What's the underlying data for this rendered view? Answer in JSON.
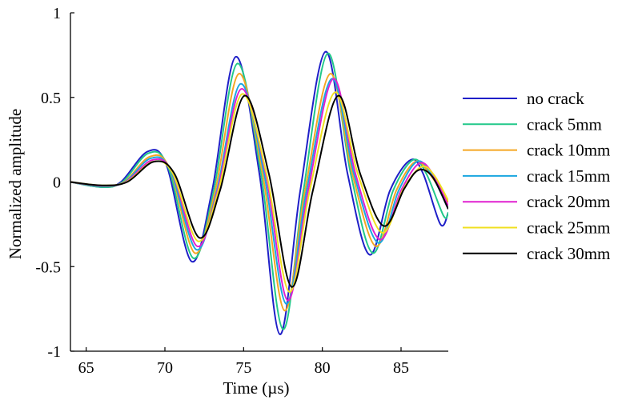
{
  "chart_data": {
    "type": "line",
    "title": "",
    "xlabel": "Time (µs)",
    "ylabel": "Normalized amplitude",
    "xlim": [
      64,
      88
    ],
    "ylim": [
      -1,
      1
    ],
    "x_ticks": [
      {
        "value": 65,
        "label": "65"
      },
      {
        "value": 70,
        "label": "70"
      },
      {
        "value": 75,
        "label": "75"
      },
      {
        "value": 80,
        "label": "80"
      },
      {
        "value": 85,
        "label": "85"
      }
    ],
    "y_ticks": [
      {
        "value": -1,
        "label": "-1"
      },
      {
        "value": -0.5,
        "label": "-0.5"
      },
      {
        "value": 0,
        "label": "0"
      },
      {
        "value": 0.5,
        "label": "0.5"
      },
      {
        "value": 1,
        "label": "1"
      }
    ],
    "grid": false,
    "legend_position": "right",
    "series": [
      {
        "name": "no crack",
        "color": "#1f1fc8",
        "points": [
          [
            64,
            0
          ],
          [
            66,
            -0.03
          ],
          [
            67.2,
            0
          ],
          [
            68.9,
            0.18
          ],
          [
            70.1,
            0.1
          ],
          [
            71.7,
            -0.47
          ],
          [
            73.0,
            -0.05
          ],
          [
            74.5,
            0.74
          ],
          [
            76.0,
            0.05
          ],
          [
            77.3,
            -0.9
          ],
          [
            78.6,
            -0.05
          ],
          [
            80.2,
            0.77
          ],
          [
            81.6,
            0.05
          ],
          [
            83.0,
            -0.43
          ],
          [
            84.3,
            -0.05
          ],
          [
            85.6,
            0.13
          ],
          [
            86.4,
            0.05
          ],
          [
            87.5,
            -0.25
          ],
          [
            88,
            -0.18
          ]
        ]
      },
      {
        "name": "crack 5mm",
        "color": "#22c88a",
        "points": [
          [
            64,
            0
          ],
          [
            66,
            -0.03
          ],
          [
            67.3,
            0
          ],
          [
            68.95,
            0.17
          ],
          [
            70.2,
            0.09
          ],
          [
            71.8,
            -0.45
          ],
          [
            73.1,
            -0.05
          ],
          [
            74.6,
            0.7
          ],
          [
            76.1,
            0.05
          ],
          [
            77.5,
            -0.87
          ],
          [
            78.8,
            -0.05
          ],
          [
            80.35,
            0.76
          ],
          [
            81.8,
            0.05
          ],
          [
            83.2,
            -0.42
          ],
          [
            84.5,
            -0.05
          ],
          [
            85.75,
            0.13
          ],
          [
            86.6,
            0.05
          ],
          [
            87.7,
            -0.2
          ],
          [
            88,
            -0.18
          ]
        ]
      },
      {
        "name": "crack 10mm",
        "color": "#f5a623",
        "points": [
          [
            64,
            0
          ],
          [
            66,
            -0.025
          ],
          [
            67.4,
            0
          ],
          [
            69.05,
            0.15
          ],
          [
            70.3,
            0.08
          ],
          [
            71.9,
            -0.42
          ],
          [
            73.2,
            -0.05
          ],
          [
            74.7,
            0.64
          ],
          [
            76.2,
            0.05
          ],
          [
            77.6,
            -0.76
          ],
          [
            78.9,
            -0.05
          ],
          [
            80.5,
            0.64
          ],
          [
            81.9,
            0.05
          ],
          [
            83.4,
            -0.38
          ],
          [
            84.7,
            -0.05
          ],
          [
            85.9,
            0.12
          ],
          [
            86.8,
            0.05
          ],
          [
            88,
            -0.12
          ]
        ]
      },
      {
        "name": "crack 15mm",
        "color": "#1aa6e0",
        "points": [
          [
            64,
            0
          ],
          [
            66,
            -0.025
          ],
          [
            67.45,
            0
          ],
          [
            69.1,
            0.14
          ],
          [
            70.35,
            0.07
          ],
          [
            72.0,
            -0.4
          ],
          [
            73.3,
            -0.05
          ],
          [
            74.8,
            0.58
          ],
          [
            76.3,
            0.05
          ],
          [
            77.7,
            -0.72
          ],
          [
            79.0,
            -0.05
          ],
          [
            80.6,
            0.61
          ],
          [
            82.0,
            0.05
          ],
          [
            83.55,
            -0.36
          ],
          [
            84.85,
            -0.05
          ],
          [
            86.0,
            0.12
          ],
          [
            86.9,
            0.05
          ],
          [
            88,
            -0.16
          ]
        ]
      },
      {
        "name": "crack 20mm",
        "color": "#e020d0",
        "points": [
          [
            64,
            0
          ],
          [
            66,
            -0.022
          ],
          [
            67.5,
            0
          ],
          [
            69.2,
            0.13
          ],
          [
            70.45,
            0.06
          ],
          [
            72.05,
            -0.38
          ],
          [
            73.35,
            -0.05
          ],
          [
            74.85,
            0.55
          ],
          [
            76.4,
            0.05
          ],
          [
            77.8,
            -0.7
          ],
          [
            79.1,
            -0.05
          ],
          [
            80.7,
            0.61
          ],
          [
            82.1,
            0.05
          ],
          [
            83.65,
            -0.34
          ],
          [
            85.0,
            -0.05
          ],
          [
            86.15,
            0.11
          ],
          [
            87.0,
            0.05
          ],
          [
            88,
            -0.14
          ]
        ]
      },
      {
        "name": "crack 25mm",
        "color": "#f0e020",
        "points": [
          [
            64,
            0
          ],
          [
            66,
            -0.02
          ],
          [
            67.55,
            0
          ],
          [
            69.25,
            0.12
          ],
          [
            70.5,
            0.05
          ],
          [
            72.1,
            -0.35
          ],
          [
            73.4,
            -0.05
          ],
          [
            74.9,
            0.52
          ],
          [
            76.45,
            0.05
          ],
          [
            77.9,
            -0.65
          ],
          [
            79.2,
            -0.05
          ],
          [
            80.8,
            0.53
          ],
          [
            82.25,
            0.05
          ],
          [
            83.8,
            -0.3
          ],
          [
            85.15,
            -0.04
          ],
          [
            86.3,
            0.09
          ],
          [
            87.1,
            0.04
          ],
          [
            88,
            -0.11
          ]
        ]
      },
      {
        "name": "crack 30mm",
        "color": "#000000",
        "points": [
          [
            64,
            0
          ],
          [
            66,
            -0.02
          ],
          [
            67.6,
            0
          ],
          [
            69.3,
            0.12
          ],
          [
            70.6,
            0.05
          ],
          [
            72.2,
            -0.33
          ],
          [
            73.5,
            -0.05
          ],
          [
            75.05,
            0.51
          ],
          [
            76.6,
            0.05
          ],
          [
            78.05,
            -0.62
          ],
          [
            79.4,
            -0.05
          ],
          [
            81.0,
            0.51
          ],
          [
            82.4,
            0.05
          ],
          [
            83.9,
            -0.26
          ],
          [
            85.2,
            -0.04
          ],
          [
            86.1,
            0.07
          ],
          [
            87.0,
            0.03
          ],
          [
            88,
            -0.16
          ]
        ]
      }
    ]
  }
}
